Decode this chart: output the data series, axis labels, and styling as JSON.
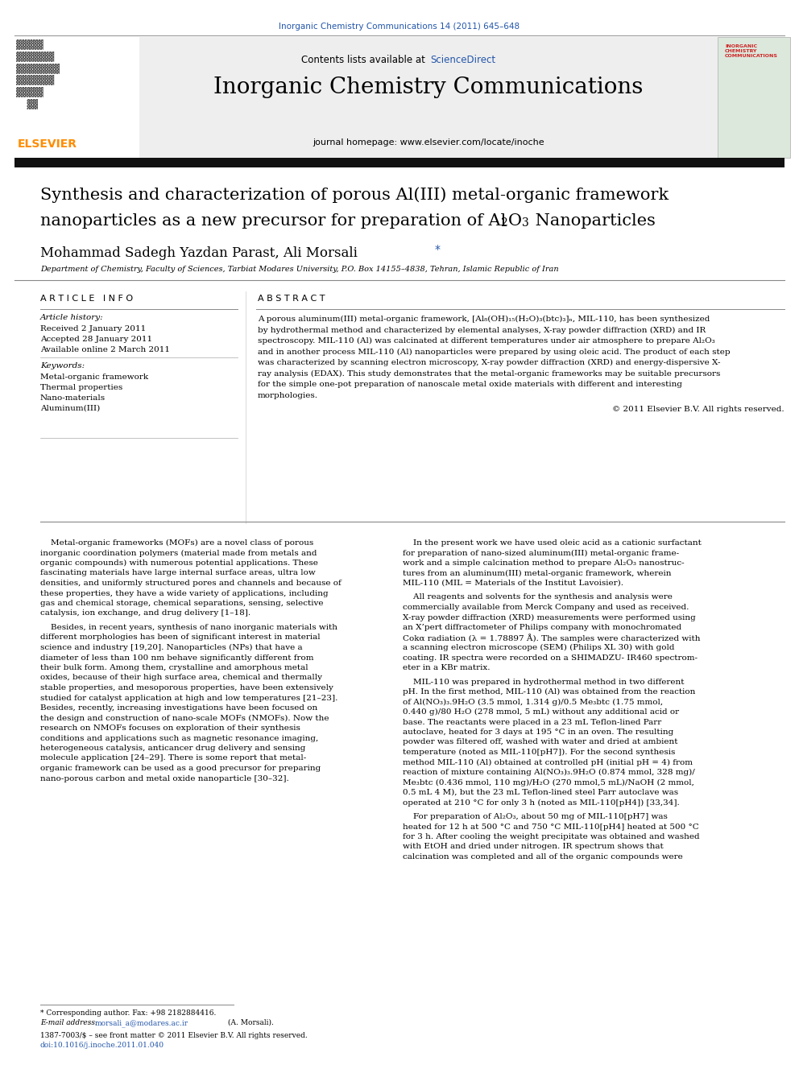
{
  "page_width": 9.92,
  "page_height": 13.23,
  "dpi": 100,
  "background_color": "#ffffff",
  "top_journal_line": "Inorganic Chemistry Communications 14 (2011) 645–648",
  "top_journal_color": "#2255aa",
  "header_bg_color": "#eeeeee",
  "header_text_contents": "Contents lists available at ",
  "header_sciencedirect": "ScienceDirect",
  "header_sciencedirect_color": "#2255aa",
  "journal_title": "Inorganic Chemistry Communications",
  "journal_homepage": "journal homepage: www.elsevier.com/locate/inoche",
  "elsevier_color": "#ff8c00",
  "thick_bar_color": "#111111",
  "article_title_line1": "Synthesis and characterization of porous Al(III) metal-organic framework",
  "article_title_line2_pre": "nanoparticles as a new precursor for preparation of Al",
  "article_title_line2_post": "O",
  "article_title_line2_end": " Nanoparticles",
  "authors": "Mohammad Sadegh Yazdan Parast, Ali Morsali",
  "affiliation": "Department of Chemistry, Faculty of Sciences, Tarbiat Modares University, P.O. Box 14155–4838, Tehran, Islamic Republic of Iran",
  "article_info_header": "A R T I C L E   I N F O",
  "abstract_header": "A B S T R A C T",
  "article_history_label": "Article history:",
  "received": "Received 2 January 2011",
  "accepted": "Accepted 28 January 2011",
  "available": "Available online 2 March 2011",
  "keywords_label": "Keywords:",
  "keywords": [
    "Metal-organic framework",
    "Thermal properties",
    "Nano-materials",
    "Aluminum(III)"
  ],
  "abstract_lines": [
    "A porous aluminum(III) metal-organic framework, [Al₈(OH)₁₅(H₂O)₃(btc)₃]ₙ, MIL-110, has been synthesized",
    "by hydrothermal method and characterized by elemental analyses, X-ray powder diffraction (XRD) and IR",
    "spectroscopy. MIL-110 (Al) was calcinated at different temperatures under air atmosphere to prepare Al₂O₃",
    "and in another process MIL-110 (Al) nanoparticles were prepared by using oleic acid. The product of each step",
    "was characterized by scanning electron microscopy, X-ray powder diffraction (XRD) and energy-dispersive X-",
    "ray analysis (EDAX). This study demonstrates that the metal-organic frameworks may be suitable precursors",
    "for the simple one-pot preparation of nanoscale metal oxide materials with different and interesting",
    "morphologies."
  ],
  "copyright": "© 2011 Elsevier B.V. All rights reserved.",
  "body_col1_lines": [
    "    Metal-organic frameworks (MOFs) are a novel class of porous",
    "inorganic coordination polymers (material made from metals and",
    "organic compounds) with numerous potential applications. These",
    "fascinating materials have large internal surface areas, ultra low",
    "densities, and uniformly structured pores and channels and because of",
    "these properties, they have a wide variety of applications, including",
    "gas and chemical storage, chemical separations, sensing, selective",
    "catalysis, ion exchange, and drug delivery [1–18].",
    "",
    "    Besides, in recent years, synthesis of nano inorganic materials with",
    "different morphologies has been of significant interest in material",
    "science and industry [19,20]. Nanoparticles (NPs) that have a",
    "diameter of less than 100 nm behave significantly different from",
    "their bulk form. Among them, crystalline and amorphous metal",
    "oxides, because of their high surface area, chemical and thermally",
    "stable properties, and mesoporous properties, have been extensively",
    "studied for catalyst application at high and low temperatures [21–23].",
    "Besides, recently, increasing investigations have been focused on",
    "the design and construction of nano-scale MOFs (NMOFs). Now the",
    "research on NMOFs focuses on exploration of their synthesis",
    "conditions and applications such as magnetic resonance imaging,",
    "heterogeneous catalysis, anticancer drug delivery and sensing",
    "molecule application [24–29]. There is some report that metal-",
    "organic framework can be used as a good precursor for preparing",
    "nano-porous carbon and metal oxide nanoparticle [30–32]."
  ],
  "body_col2_lines": [
    "    In the present work we have used oleic acid as a cationic surfactant",
    "for preparation of nano-sized aluminum(III) metal-organic frame-",
    "work and a simple calcination method to prepare Al₂O₃ nanostruc-",
    "tures from an aluminum(III) metal-organic framework, wherein",
    "MIL-110 (MIL = Materials of the Institut Lavoisier).",
    "",
    "    All reagents and solvents for the synthesis and analysis were",
    "commercially available from Merck Company and used as received.",
    "X-ray powder diffraction (XRD) measurements were performed using",
    "an X’pert diffractometer of Philips company with monochromated",
    "Cokα radiation (λ = 1.78897 Å). The samples were characterized with",
    "a scanning electron microscope (SEM) (Philips XL 30) with gold",
    "coating. IR spectra were recorded on a SHIMADZU- IR460 spectrom-",
    "eter in a KBr matrix.",
    "",
    "    MIL-110 was prepared in hydrothermal method in two different",
    "pH. In the first method, MIL-110 (Al) was obtained from the reaction",
    "of Al(NO₃)₃.9H₂O (3.5 mmol, 1.314 g)/0.5 Me₃btc (1.75 mmol,",
    "0.440 g)/80 H₂O (278 mmol, 5 mL) without any additional acid or",
    "base. The reactants were placed in a 23 mL Teflon-lined Parr",
    "autoclave, heated for 3 days at 195 °C in an oven. The resulting",
    "powder was filtered off, washed with water and dried at ambient",
    "temperature (noted as MIL-110[pH7]). For the second synthesis",
    "method MIL-110 (Al) obtained at controlled pH (initial pH = 4) from",
    "reaction of mixture containing Al(NO₃)₃.9H₂O (0.874 mmol, 328 mg)/",
    "Me₃btc (0.436 mmol, 110 mg)/H₂O (270 mmol,5 mL)/NaOH (2 mmol,",
    "0.5 mL 4 M), but the 23 mL Teflon-lined steel Parr autoclave was",
    "operated at 210 °C for only 3 h (noted as MIL-110[pH4]) [33,34].",
    "",
    "    For preparation of Al₂O₃, about 50 mg of MIL-110[pH7] was",
    "heated for 12 h at 500 °C and 750 °C MIL-110[pH4] heated at 500 °C",
    "for 3 h. After cooling the weight precipitate was obtained and washed",
    "with EtOH and dried under nitrogen. IR spectrum shows that",
    "calcination was completed and all of the organic compounds were"
  ],
  "footnote_line1": "* Corresponding author. Fax: +98 2182884416.",
  "footnote_email_label": "E-mail address: ",
  "footnote_email": "morsali_a@modares.ac.ir",
  "footnote_email_color": "#2255aa",
  "footnote_email_end": " (A. Morsali).",
  "footer_issn": "1387-7003/$ – see front matter © 2011 Elsevier B.V. All rights reserved.",
  "footer_doi": "doi:10.1016/j.inoche.2011.01.040",
  "footer_doi_color": "#2255aa"
}
